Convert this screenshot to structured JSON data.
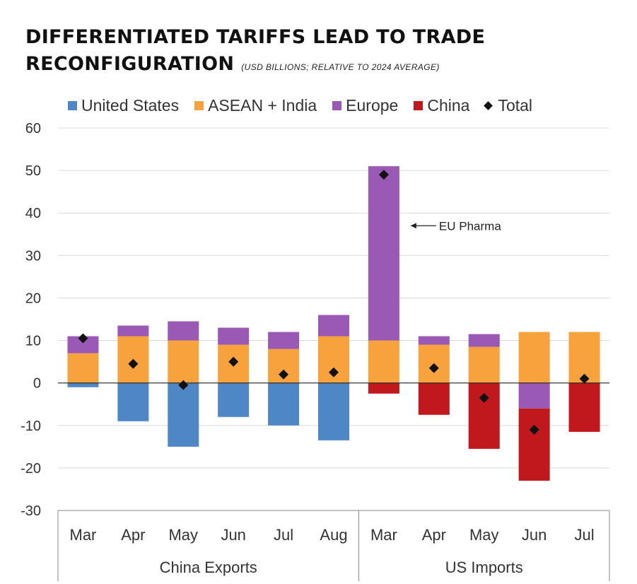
{
  "title": {
    "line1": "DIFFERENTIATED TARIFFS LEAD TO TRADE",
    "line2": "RECONFIGURATION",
    "subtitle": "(USD BILLIONS; RELATIVE TO 2024 AVERAGE)"
  },
  "legend": [
    {
      "label": "United States",
      "color": "#4f86c6",
      "marker": "square"
    },
    {
      "label": "ASEAN + India",
      "color": "#f7a23c",
      "marker": "square"
    },
    {
      "label": "Europe",
      "color": "#9b59b6",
      "marker": "square"
    },
    {
      "label": "China",
      "color": "#c0181c",
      "marker": "square"
    },
    {
      "label": "Total",
      "color": "#111111",
      "marker": "diamond"
    }
  ],
  "chart_data": {
    "type": "bar",
    "stacked": true,
    "ylim": [
      -30,
      60
    ],
    "yticks": [
      60,
      50,
      40,
      30,
      20,
      10,
      0,
      -10,
      -20,
      -30
    ],
    "grid": true,
    "legend_position": "top",
    "categories": [
      "Mar",
      "Apr",
      "May",
      "Jun",
      "Jul",
      "Aug",
      "Mar",
      "Apr",
      "May",
      "Jun",
      "Jul"
    ],
    "groups": [
      {
        "label": "China Exports",
        "count": 6
      },
      {
        "label": "US Imports",
        "count": 5
      }
    ],
    "series": [
      {
        "name": "United States",
        "color": "#4f86c6",
        "values": [
          -1,
          -9,
          -15,
          -8,
          -10,
          -13.5,
          0,
          0,
          0,
          0,
          0
        ]
      },
      {
        "name": "ASEAN + India",
        "color": "#f7a23c",
        "values": [
          7,
          11,
          10,
          9,
          8,
          11,
          10,
          9,
          8.5,
          12,
          12
        ]
      },
      {
        "name": "Europe",
        "color": "#9b59b6",
        "values": [
          4,
          2.5,
          4.5,
          4,
          4,
          5,
          41,
          2,
          3,
          -6,
          0
        ]
      },
      {
        "name": "China",
        "color": "#c0181c",
        "values": [
          0,
          0,
          0,
          0,
          0,
          0,
          -2.5,
          -7.5,
          -15.5,
          -17,
          -11.5
        ]
      }
    ],
    "total": {
      "name": "Total",
      "values": [
        10.5,
        4.5,
        -0.5,
        5,
        2,
        2.5,
        49,
        3.5,
        -3.5,
        -11,
        1
      ]
    },
    "annotations": [
      {
        "text": "EU Pharma",
        "category_index": 6,
        "y": 37
      }
    ]
  }
}
